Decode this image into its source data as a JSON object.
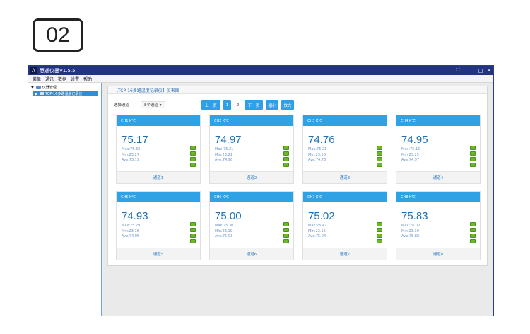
{
  "step": {
    "label": "02"
  },
  "window": {
    "title": "慧通仪器V1.5.5",
    "controls": {
      "fullscreen": "⛶",
      "minimize": "—",
      "maximize": "□",
      "close": "✕"
    }
  },
  "menu": {
    "items": [
      "菜单",
      "通讯",
      "数据",
      "设置",
      "帮助"
    ]
  },
  "sidebar": {
    "root_label": "仪器管理",
    "device_label": "TCP-16多路温度记录仪"
  },
  "panel": {
    "title": "【TCP-16多路温度记录仪】仪表图"
  },
  "toolbar": {
    "channel_label": "选择通道",
    "channel_select": "8个通道 ▾",
    "prev_label": "上一页",
    "page1": "1",
    "page2": "2",
    "next_label": "下一页",
    "zoomout_label": "缩小",
    "zoomin_label": "放大"
  },
  "cards": [
    {
      "header": "CH1 K℃",
      "value": "75.17",
      "max": "Max:75.32",
      "min": "Min:23.27",
      "ave": "Ave:75.19",
      "footer": "通道1"
    },
    {
      "header": "CH2 K℃",
      "value": "74.97",
      "max": "Max:75.21",
      "min": "Min:23.21",
      "ave": "Ave:74.96",
      "footer": "通道2"
    },
    {
      "header": "CH3 K℃",
      "value": "74.76",
      "max": "Max:75.21",
      "min": "Min:23.16",
      "ave": "Ave:74.76",
      "footer": "通道3"
    },
    {
      "header": "CH4 K℃",
      "value": "74.95",
      "max": "Max:75.15",
      "min": "Min:23.25",
      "ave": "Ave:74.97",
      "footer": "通道4"
    },
    {
      "header": "CH5 K℃",
      "value": "74.93",
      "max": "Max:75.29",
      "min": "Min:23.16",
      "ave": "Ave:74.95",
      "footer": "通道5"
    },
    {
      "header": "CH6 K℃",
      "value": "75.00",
      "max": "Max:75.30",
      "min": "Min:23.19",
      "ave": "Ave:75.03",
      "footer": "通道6"
    },
    {
      "header": "CH7 K℃",
      "value": "75.02",
      "max": "Max:75.47",
      "min": "Min:23.15",
      "ave": "Ave:75.04",
      "footer": "通道7"
    },
    {
      "header": "CH8 K℃",
      "value": "75.83",
      "max": "Max:76.02",
      "min": "Min:23.30",
      "ave": "Ave:75.88",
      "footer": "通道8"
    }
  ],
  "colors": {
    "accent": "#2fa2e5",
    "titlebar": "#23347e",
    "led": "#6ab82a"
  }
}
